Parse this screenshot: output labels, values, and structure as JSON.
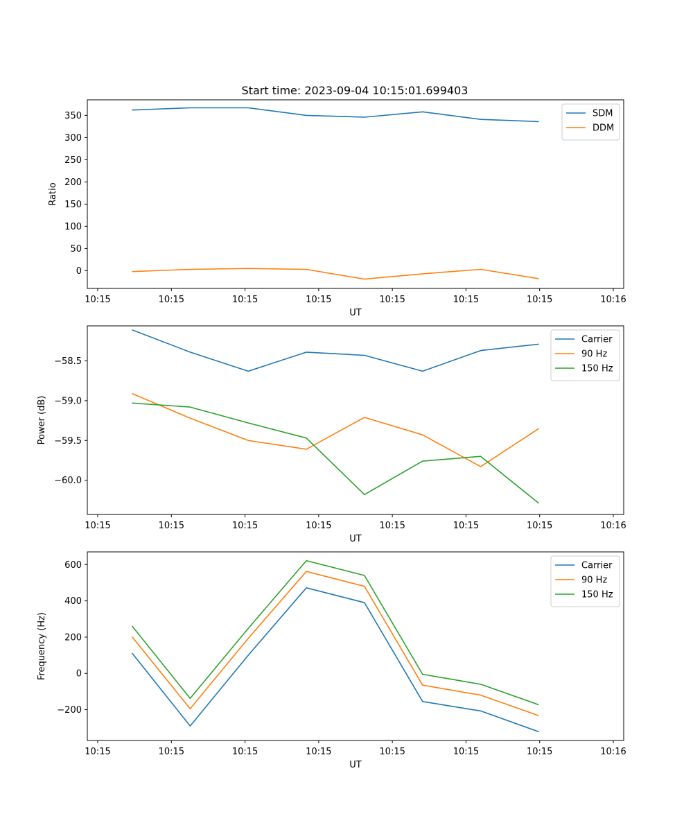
{
  "figure_title": "Start time: 2023-09-04 10:15:01.699403",
  "colors": {
    "c0": "#1f77b4",
    "c1": "#ff7f0e",
    "c2": "#2ca02c"
  },
  "chart_data": [
    {
      "type": "line",
      "title": "Start time: 2023-09-04 10:15:01.699403",
      "xlabel": "UT",
      "ylabel": "Ratio",
      "x_tick_labels": [
        "10:15",
        "10:15",
        "10:15",
        "10:15",
        "10:15",
        "10:15",
        "10:15"
      ],
      "x_tick_last": "10:16",
      "x": [
        0.5,
        1.15,
        1.8,
        2.45,
        3.1,
        3.75,
        4.4,
        5.05
      ],
      "xlim": [
        0,
        6
      ],
      "ylim": [
        -40,
        385
      ],
      "yticks": [
        0,
        50,
        100,
        150,
        200,
        250,
        300,
        350
      ],
      "ytick_labels": [
        "0",
        "50",
        "100",
        "150",
        "200",
        "250",
        "300",
        "350"
      ],
      "legend_position": "top-right",
      "series": [
        {
          "name": "SDM",
          "color": "#1f77b4",
          "values": [
            362,
            367,
            367,
            350,
            346,
            358,
            341,
            336
          ]
        },
        {
          "name": "DDM",
          "color": "#ff7f0e",
          "values": [
            -2,
            3,
            5,
            3,
            -19,
            -7,
            3,
            -18
          ]
        }
      ]
    },
    {
      "type": "line",
      "xlabel": "UT",
      "ylabel": "Power (dB)",
      "x_tick_labels": [
        "10:15",
        "10:15",
        "10:15",
        "10:15",
        "10:15",
        "10:15",
        "10:15"
      ],
      "x_tick_last": "10:16",
      "x": [
        0.5,
        1.15,
        1.8,
        2.45,
        3.1,
        3.75,
        4.4,
        5.05
      ],
      "xlim": [
        0,
        6
      ],
      "ylim": [
        -60.43,
        -58.06
      ],
      "yticks": [
        -58.5,
        -59.0,
        -59.5,
        -60.0
      ],
      "ytick_labels": [
        "−58.5",
        "−59.0",
        "−59.5",
        "−60.0"
      ],
      "legend_position": "top-right",
      "series": [
        {
          "name": "Carrier",
          "color": "#1f77b4",
          "values": [
            -58.11,
            -58.39,
            -58.63,
            -58.39,
            -58.43,
            -58.63,
            -58.37,
            -58.29
          ]
        },
        {
          "name": "90 Hz",
          "color": "#ff7f0e",
          "values": [
            -58.91,
            -59.22,
            -59.5,
            -59.61,
            -59.21,
            -59.43,
            -59.83,
            -59.35
          ]
        },
        {
          "name": "150 Hz",
          "color": "#2ca02c",
          "values": [
            -59.03,
            -59.08,
            -59.28,
            -59.47,
            -60.18,
            -59.76,
            -59.7,
            -60.29
          ]
        }
      ]
    },
    {
      "type": "line",
      "xlabel": "UT",
      "ylabel": "Frequency (Hz)",
      "x_tick_labels": [
        "10:15",
        "10:15",
        "10:15",
        "10:15",
        "10:15",
        "10:15",
        "10:15"
      ],
      "x_tick_last": "10:16",
      "x": [
        0.5,
        1.15,
        1.8,
        2.45,
        3.1,
        3.75,
        4.4,
        5.05
      ],
      "xlim": [
        0,
        6
      ],
      "ylim": [
        -370,
        670
      ],
      "yticks": [
        -200,
        0,
        200,
        400,
        600
      ],
      "ytick_labels": [
        "−200",
        "0",
        "200",
        "400",
        "600"
      ],
      "legend_position": "top-right",
      "series": [
        {
          "name": "Carrier",
          "color": "#1f77b4",
          "values": [
            112,
            -290,
            100,
            472,
            390,
            -155,
            -207,
            -322
          ]
        },
        {
          "name": "90 Hz",
          "color": "#ff7f0e",
          "values": [
            202,
            -195,
            193,
            562,
            480,
            -65,
            -120,
            -233
          ]
        },
        {
          "name": "150 Hz",
          "color": "#2ca02c",
          "values": [
            262,
            -138,
            248,
            622,
            540,
            -5,
            -60,
            -173
          ]
        }
      ]
    }
  ]
}
